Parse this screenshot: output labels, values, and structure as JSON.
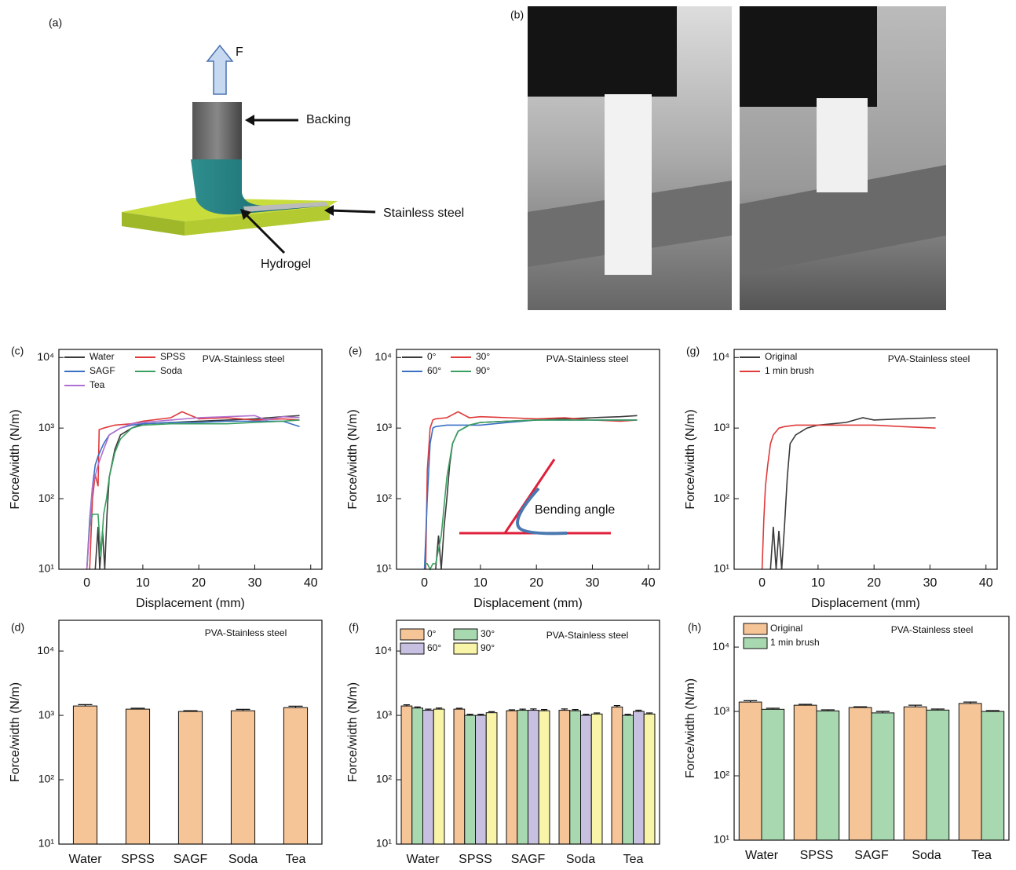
{
  "schematic": {
    "label": "(a)",
    "force": "F",
    "backing": "Backing",
    "steel": "Stainless steel",
    "hydrogel": "Hydrogel"
  },
  "photos": {
    "label": "(b)"
  },
  "chart_data": [
    {
      "type": "line",
      "panel_label": "(c)",
      "annotation": "PVA-Stainless steel",
      "xlabel": "Displacement (mm)",
      "ylabel": "Force/width (N/m)",
      "log_y": true,
      "xlim": [
        -5,
        42
      ],
      "xticks": [
        0,
        10,
        20,
        30,
        40
      ],
      "ylim": [
        10,
        13000
      ],
      "yticks": [
        {
          "value": 10,
          "label": "10¹"
        },
        {
          "value": 100,
          "label": "10²"
        },
        {
          "value": 1000,
          "label": "10³"
        },
        {
          "value": 10000,
          "label": "10⁴"
        }
      ],
      "series": [
        {
          "name": "Water",
          "color": "#3a3a3a",
          "x": [
            1.5,
            2,
            2.3,
            2.8,
            3.2,
            3.6,
            4,
            5,
            6,
            8,
            10,
            15,
            20,
            25,
            30,
            35,
            38
          ],
          "values": [
            10,
            40,
            10,
            35,
            10,
            60,
            200,
            500,
            800,
            1000,
            1150,
            1200,
            1250,
            1300,
            1350,
            1450,
            1500
          ]
        },
        {
          "name": "SPSS",
          "color": "#e03a3a",
          "x": [
            0.5,
            1,
            1.5,
            2,
            2.2,
            3,
            5,
            8,
            10,
            15,
            17,
            20,
            25,
            30,
            35,
            38
          ],
          "values": [
            10,
            100,
            220,
            150,
            950,
            1000,
            1100,
            1150,
            1250,
            1400,
            1700,
            1350,
            1400,
            1300,
            1350,
            1300
          ]
        },
        {
          "name": "SAGF",
          "color": "#3a6fc4",
          "x": [
            0,
            0.5,
            1,
            1.5,
            2,
            3,
            4,
            6,
            8,
            10,
            15,
            20,
            25,
            30,
            35,
            38
          ],
          "values": [
            10,
            50,
            150,
            300,
            400,
            600,
            800,
            1000,
            1100,
            1150,
            1200,
            1200,
            1250,
            1250,
            1250,
            1050
          ]
        },
        {
          "name": "Soda",
          "color": "#3aa060",
          "x": [
            0,
            0.5,
            1,
            2,
            2.5,
            3,
            3.5,
            4,
            5,
            6,
            8,
            10,
            15,
            20,
            25,
            30,
            35,
            38
          ],
          "values": [
            10,
            40,
            60,
            60,
            15,
            60,
            100,
            200,
            450,
            700,
            1000,
            1100,
            1150,
            1150,
            1150,
            1200,
            1250,
            1300
          ]
        },
        {
          "name": "Tea",
          "color": "#b070d0",
          "x": [
            0,
            1,
            2,
            3,
            4,
            6,
            8,
            10,
            15,
            20,
            25,
            30,
            32,
            35,
            38
          ],
          "values": [
            10,
            150,
            300,
            500,
            800,
            1000,
            1150,
            1200,
            1300,
            1400,
            1450,
            1500,
            1300,
            1450,
            1400
          ]
        }
      ]
    },
    {
      "type": "line",
      "panel_label": "(e)",
      "annotation": "PVA-Stainless steel",
      "inset_label": "Bending angle",
      "xlabel": "Displacement (mm)",
      "ylabel": "Force/width (N/m)",
      "log_y": true,
      "xlim": [
        -5,
        42
      ],
      "xticks": [
        0,
        10,
        20,
        30,
        40
      ],
      "ylim": [
        10,
        13000
      ],
      "yticks": [
        {
          "value": 10,
          "label": "10¹"
        },
        {
          "value": 100,
          "label": "10²"
        },
        {
          "value": 1000,
          "label": "10³"
        },
        {
          "value": 10000,
          "label": "10⁴"
        }
      ],
      "series": [
        {
          "name": "0°",
          "color": "#3a3a3a",
          "x": [
            2,
            2.5,
            3,
            3.5,
            4,
            4.5,
            5,
            6,
            8,
            10,
            15,
            20,
            25,
            30,
            35,
            38
          ],
          "values": [
            10,
            30,
            10,
            40,
            100,
            300,
            600,
            900,
            1100,
            1200,
            1250,
            1300,
            1350,
            1400,
            1450,
            1500
          ]
        },
        {
          "name": "30°",
          "color": "#e03a3a",
          "x": [
            0.2,
            0.5,
            1,
            1.5,
            2,
            4,
            6,
            8,
            10,
            15,
            20,
            25,
            30,
            35,
            38
          ],
          "values": [
            10,
            250,
            1000,
            1300,
            1350,
            1400,
            1700,
            1400,
            1450,
            1400,
            1350,
            1400,
            1300,
            1250,
            1300
          ]
        },
        {
          "name": "60°",
          "color": "#3a6fc4",
          "x": [
            0,
            0.5,
            1,
            1.5,
            2,
            4,
            6,
            10,
            15,
            20,
            25,
            30,
            35,
            38
          ],
          "values": [
            10,
            100,
            600,
            1000,
            1050,
            1100,
            1100,
            1100,
            1200,
            1300,
            1300,
            1300,
            1300,
            1300
          ]
        },
        {
          "name": "90°",
          "color": "#3aa060",
          "x": [
            0,
            0.5,
            1,
            1.5,
            2,
            3,
            4,
            5,
            6,
            8,
            10,
            15,
            20,
            25,
            30,
            35,
            38
          ],
          "values": [
            12,
            12,
            10,
            12,
            12,
            30,
            200,
            600,
            900,
            1100,
            1200,
            1250,
            1300,
            1300,
            1300,
            1300,
            1300
          ]
        }
      ]
    },
    {
      "type": "line",
      "panel_label": "(g)",
      "annotation": "PVA-Stainless steel",
      "xlabel": "Displacement (mm)",
      "ylabel": "Force/width (N/m)",
      "log_y": true,
      "xlim": [
        -5,
        42
      ],
      "xticks": [
        0,
        10,
        20,
        30,
        40
      ],
      "ylim": [
        10,
        13000
      ],
      "yticks": [
        {
          "value": 10,
          "label": "10¹"
        },
        {
          "value": 100,
          "label": "10²"
        },
        {
          "value": 1000,
          "label": "10³"
        },
        {
          "value": 10000,
          "label": "10⁴"
        }
      ],
      "series": [
        {
          "name": "Original",
          "color": "#3a3a3a",
          "x": [
            1.5,
            2,
            2.5,
            3,
            3.5,
            4,
            4.5,
            5,
            6,
            8,
            10,
            15,
            18,
            20,
            25,
            31
          ],
          "values": [
            10,
            40,
            10,
            35,
            10,
            40,
            200,
            600,
            800,
            1000,
            1100,
            1200,
            1400,
            1300,
            1350,
            1400
          ]
        },
        {
          "name": "1 min brush",
          "color": "#e03a3a",
          "x": [
            0,
            0.3,
            0.6,
            1,
            1.5,
            2,
            3,
            4,
            6,
            10,
            15,
            20,
            25,
            31
          ],
          "values": [
            10,
            50,
            150,
            300,
            600,
            800,
            1000,
            1050,
            1100,
            1100,
            1100,
            1100,
            1050,
            1000
          ]
        }
      ]
    },
    {
      "type": "bar",
      "panel_label": "(d)",
      "annotation": "PVA-Stainless steel",
      "ylabel": "Force/width (N/m)",
      "log_y": true,
      "categories": [
        "Water",
        "SPSS",
        "SAGF",
        "Soda",
        "Tea"
      ],
      "values": [
        1400,
        1250,
        1150,
        1180,
        1320
      ],
      "errors": [
        70,
        40,
        30,
        60,
        70
      ],
      "color": "#f5c497",
      "ylim": [
        10,
        30000
      ],
      "yticks": [
        {
          "value": 10,
          "label": "10¹"
        },
        {
          "value": 100,
          "label": "10²"
        },
        {
          "value": 1000,
          "label": "10³"
        },
        {
          "value": 10000,
          "label": "10⁴"
        }
      ]
    },
    {
      "type": "bar",
      "panel_label": "(f)",
      "annotation": "PVA-Stainless steel",
      "ylabel": "Force/width (N/m)",
      "log_y": true,
      "categories": [
        "Water",
        "SPSS",
        "SAGF",
        "Soda",
        "Tea"
      ],
      "ylim": [
        10,
        30000
      ],
      "yticks": [
        {
          "value": 10,
          "label": "10¹"
        },
        {
          "value": 100,
          "label": "10²"
        },
        {
          "value": 1000,
          "label": "10³"
        },
        {
          "value": 10000,
          "label": "10⁴"
        }
      ],
      "series": [
        {
          "name": "0°",
          "color": "#f5c497",
          "values": [
            1400,
            1250,
            1180,
            1200,
            1350
          ],
          "errors": [
            60,
            40,
            40,
            60,
            70
          ]
        },
        {
          "name": "30°",
          "color": "#a8d8b0",
          "values": [
            1300,
            1000,
            1200,
            1180,
            1000
          ],
          "errors": [
            50,
            40,
            50,
            50,
            40
          ]
        },
        {
          "name": "60°",
          "color": "#c8c0e0",
          "values": [
            1200,
            1000,
            1200,
            1000,
            1150
          ],
          "errors": [
            50,
            40,
            60,
            40,
            50
          ]
        },
        {
          "name": "90°",
          "color": "#f8f4a8",
          "values": [
            1250,
            1100,
            1180,
            1050,
            1050
          ],
          "errors": [
            50,
            40,
            50,
            40,
            40
          ]
        }
      ]
    },
    {
      "type": "bar",
      "panel_label": "(h)",
      "annotation": "PVA-Stainless steel",
      "ylabel": "Force/width (N/m)",
      "log_y": true,
      "categories": [
        "Water",
        "SPSS",
        "SAGF",
        "Soda",
        "Tea"
      ],
      "ylim": [
        10,
        30000
      ],
      "yticks": [
        {
          "value": 10,
          "label": "10¹"
        },
        {
          "value": 100,
          "label": "10²"
        },
        {
          "value": 1000,
          "label": "10³"
        },
        {
          "value": 10000,
          "label": "10⁴"
        }
      ],
      "series": [
        {
          "name": "Original",
          "color": "#f5c497",
          "values": [
            1400,
            1250,
            1150,
            1180,
            1330
          ],
          "errors": [
            70,
            40,
            30,
            70,
            70
          ]
        },
        {
          "name": "1 min brush",
          "color": "#a8d8b0",
          "values": [
            1080,
            1020,
            950,
            1050,
            1000
          ],
          "errors": [
            40,
            40,
            50,
            40,
            30
          ]
        }
      ]
    }
  ]
}
